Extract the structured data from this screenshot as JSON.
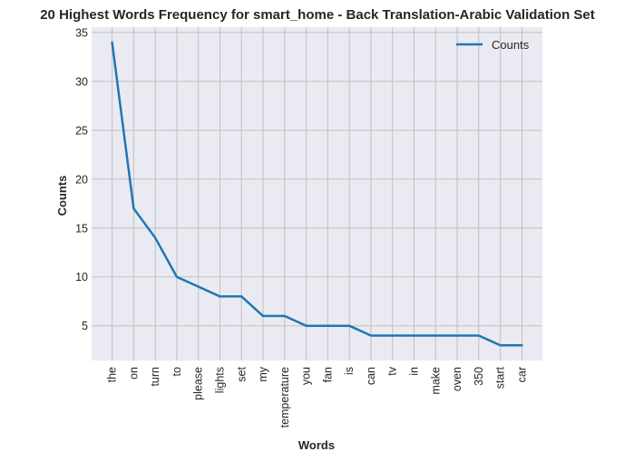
{
  "chart_data": {
    "type": "line",
    "title": "20 Highest Words Frequency for smart_home - Back Translation-Arabic Validation Set",
    "xlabel": "Words",
    "ylabel": "Counts",
    "categories": [
      "the",
      "on",
      "turn",
      "to",
      "please",
      "lights",
      "set",
      "my",
      "temperature",
      "you",
      "fan",
      "is",
      "can",
      "tv",
      "in",
      "make",
      "oven",
      "350",
      "start",
      "car"
    ],
    "series": [
      {
        "name": "Counts",
        "values": [
          34,
          17,
          14,
          10,
          9,
          8,
          8,
          6,
          6,
          5,
          5,
          5,
          4,
          4,
          4,
          4,
          4,
          4,
          3,
          3
        ],
        "color": "#1f77b4"
      }
    ],
    "ylim": [
      1.45,
      35.55
    ],
    "yticks": [
      5,
      10,
      15,
      20,
      25,
      30,
      35
    ],
    "grid": true,
    "legend": "top-right",
    "colors": {
      "plot_bg": "#eaeaf2",
      "grid": "#c0c0c0",
      "line": "#1f77b4"
    }
  }
}
